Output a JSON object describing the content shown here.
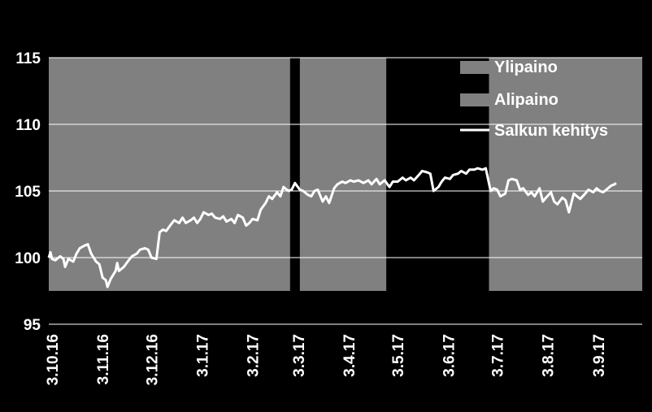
{
  "chart_data": {
    "type": "line",
    "title": "",
    "xlabel": "",
    "ylabel": "",
    "ylim": [
      95,
      115
    ],
    "yticks": [
      95,
      100,
      105,
      110,
      115
    ],
    "grid": true,
    "legend_position": "top-right",
    "x_tick_labels": [
      "3.10.16",
      "3.11.16",
      "3.12.16",
      "3.1.17",
      "3.2.17",
      "3.3.17",
      "3.4.17",
      "3.5.17",
      "3.6.17",
      "3.7.17",
      "3.8.17",
      "3.9.17"
    ],
    "colors": {
      "background": "#000000",
      "band": "#808080",
      "line": "#ffffff",
      "grid": "#ffffff"
    },
    "legend": [
      {
        "label": "Ylipaino",
        "kind": "band"
      },
      {
        "label": "Alipaino",
        "kind": "band"
      },
      {
        "label": "Salkun kehitys",
        "kind": "line"
      }
    ],
    "bands": [
      {
        "from": "2016-10-01",
        "to": "2017-02-26",
        "label": "Ylipaino"
      },
      {
        "from": "2017-03-04",
        "to": "2017-04-26",
        "label": "Ylipaino"
      },
      {
        "from": "2017-06-28",
        "to": "2017-09-30",
        "label": "Ylipaino"
      }
    ],
    "series": [
      {
        "name": "Salkun kehitys",
        "points": [
          [
            "2016-10-01",
            100.0
          ],
          [
            "2016-10-02",
            100.4
          ],
          [
            "2016-10-03",
            99.9
          ],
          [
            "2016-10-05",
            99.8
          ],
          [
            "2016-10-08",
            100.1
          ],
          [
            "2016-10-10",
            99.9
          ],
          [
            "2016-10-11",
            99.3
          ],
          [
            "2016-10-13",
            99.9
          ],
          [
            "2016-10-16",
            99.7
          ],
          [
            "2016-10-18",
            100.3
          ],
          [
            "2016-10-20",
            100.7
          ],
          [
            "2016-10-23",
            100.9
          ],
          [
            "2016-10-25",
            101.0
          ],
          [
            "2016-10-27",
            100.3
          ],
          [
            "2016-10-30",
            99.7
          ],
          [
            "2016-11-01",
            99.5
          ],
          [
            "2016-11-03",
            98.5
          ],
          [
            "2016-11-05",
            98.3
          ],
          [
            "2016-11-06",
            97.8
          ],
          [
            "2016-11-08",
            98.4
          ],
          [
            "2016-11-11",
            99.0
          ],
          [
            "2016-11-12",
            99.6
          ],
          [
            "2016-11-13",
            99.0
          ],
          [
            "2016-11-16",
            99.3
          ],
          [
            "2016-11-19",
            99.8
          ],
          [
            "2016-11-21",
            100.1
          ],
          [
            "2016-11-24",
            100.3
          ],
          [
            "2016-11-26",
            100.6
          ],
          [
            "2016-11-29",
            100.7
          ],
          [
            "2016-12-01",
            100.6
          ],
          [
            "2016-12-03",
            100.0
          ],
          [
            "2016-12-06",
            99.9
          ],
          [
            "2016-12-08",
            101.9
          ],
          [
            "2016-12-10",
            102.1
          ],
          [
            "2016-12-12",
            102.0
          ],
          [
            "2016-12-15",
            102.5
          ],
          [
            "2016-12-17",
            102.8
          ],
          [
            "2016-12-20",
            102.6
          ],
          [
            "2016-12-22",
            103.0
          ],
          [
            "2016-12-24",
            102.6
          ],
          [
            "2016-12-27",
            102.8
          ],
          [
            "2016-12-29",
            103.0
          ],
          [
            "2016-12-31",
            102.6
          ],
          [
            "2017-01-02",
            102.9
          ],
          [
            "2017-01-04",
            103.4
          ],
          [
            "2017-01-07",
            103.2
          ],
          [
            "2017-01-09",
            103.3
          ],
          [
            "2017-01-11",
            103.0
          ],
          [
            "2017-01-14",
            102.9
          ],
          [
            "2017-01-16",
            103.1
          ],
          [
            "2017-01-18",
            102.7
          ],
          [
            "2017-01-21",
            102.9
          ],
          [
            "2017-01-23",
            102.6
          ],
          [
            "2017-01-25",
            103.2
          ],
          [
            "2017-01-28",
            103.0
          ],
          [
            "2017-01-30",
            102.4
          ],
          [
            "2017-02-01",
            102.6
          ],
          [
            "2017-02-03",
            102.9
          ],
          [
            "2017-02-06",
            102.8
          ],
          [
            "2017-02-08",
            103.6
          ],
          [
            "2017-02-11",
            104.1
          ],
          [
            "2017-02-13",
            104.6
          ],
          [
            "2017-02-15",
            104.4
          ],
          [
            "2017-02-18",
            104.9
          ],
          [
            "2017-02-20",
            104.6
          ],
          [
            "2017-02-22",
            105.3
          ],
          [
            "2017-02-25",
            105.0
          ],
          [
            "2017-02-27",
            105.1
          ],
          [
            "2017-03-01",
            105.6
          ],
          [
            "2017-03-04",
            105.1
          ],
          [
            "2017-03-06",
            105.0
          ],
          [
            "2017-03-09",
            104.7
          ],
          [
            "2017-03-11",
            104.6
          ],
          [
            "2017-03-13",
            105.0
          ],
          [
            "2017-03-15",
            105.1
          ],
          [
            "2017-03-18",
            104.2
          ],
          [
            "2017-03-20",
            104.6
          ],
          [
            "2017-03-22",
            104.1
          ],
          [
            "2017-03-25",
            105.2
          ],
          [
            "2017-03-27",
            105.5
          ],
          [
            "2017-03-30",
            105.7
          ],
          [
            "2017-04-01",
            105.6
          ],
          [
            "2017-04-04",
            105.8
          ],
          [
            "2017-04-06",
            105.7
          ],
          [
            "2017-04-09",
            105.8
          ],
          [
            "2017-04-12",
            105.6
          ],
          [
            "2017-04-15",
            105.8
          ],
          [
            "2017-04-17",
            105.5
          ],
          [
            "2017-04-20",
            105.9
          ],
          [
            "2017-04-22",
            105.5
          ],
          [
            "2017-04-25",
            105.8
          ],
          [
            "2017-04-28",
            105.3
          ],
          [
            "2017-04-30",
            105.7
          ],
          [
            "2017-05-03",
            105.7
          ],
          [
            "2017-05-06",
            106.0
          ],
          [
            "2017-05-08",
            105.8
          ],
          [
            "2017-05-11",
            106.0
          ],
          [
            "2017-05-13",
            105.8
          ],
          [
            "2017-05-16",
            106.2
          ],
          [
            "2017-05-18",
            106.5
          ],
          [
            "2017-05-21",
            106.4
          ],
          [
            "2017-05-23",
            106.3
          ],
          [
            "2017-05-25",
            105.0
          ],
          [
            "2017-05-28",
            105.3
          ],
          [
            "2017-05-30",
            105.7
          ],
          [
            "2017-06-01",
            106.0
          ],
          [
            "2017-06-04",
            105.9
          ],
          [
            "2017-06-06",
            106.2
          ],
          [
            "2017-06-09",
            106.3
          ],
          [
            "2017-06-11",
            106.5
          ],
          [
            "2017-06-14",
            106.3
          ],
          [
            "2017-06-16",
            106.6
          ],
          [
            "2017-06-19",
            106.6
          ],
          [
            "2017-06-21",
            106.7
          ],
          [
            "2017-06-24",
            106.6
          ],
          [
            "2017-06-26",
            106.7
          ],
          [
            "2017-06-29",
            105.0
          ],
          [
            "2017-07-01",
            105.2
          ],
          [
            "2017-07-03",
            105.1
          ],
          [
            "2017-07-05",
            104.6
          ],
          [
            "2017-07-08",
            104.8
          ],
          [
            "2017-07-10",
            105.8
          ],
          [
            "2017-07-12",
            105.9
          ],
          [
            "2017-07-15",
            105.8
          ],
          [
            "2017-07-17",
            105.1
          ],
          [
            "2017-07-19",
            105.2
          ],
          [
            "2017-07-22",
            104.7
          ],
          [
            "2017-07-24",
            104.9
          ],
          [
            "2017-07-26",
            104.6
          ],
          [
            "2017-07-29",
            105.2
          ],
          [
            "2017-07-31",
            104.2
          ],
          [
            "2017-08-02",
            104.5
          ],
          [
            "2017-08-05",
            104.9
          ],
          [
            "2017-08-07",
            104.2
          ],
          [
            "2017-08-09",
            104.0
          ],
          [
            "2017-08-12",
            104.5
          ],
          [
            "2017-08-14",
            104.3
          ],
          [
            "2017-08-16",
            103.4
          ],
          [
            "2017-08-19",
            104.8
          ],
          [
            "2017-08-21",
            104.6
          ],
          [
            "2017-08-23",
            104.4
          ],
          [
            "2017-08-26",
            104.8
          ],
          [
            "2017-08-28",
            105.1
          ],
          [
            "2017-08-31",
            104.9
          ],
          [
            "2017-09-02",
            105.2
          ],
          [
            "2017-09-04",
            105.0
          ],
          [
            "2017-09-06",
            104.9
          ],
          [
            "2017-09-09",
            105.2
          ],
          [
            "2017-09-11",
            105.4
          ],
          [
            "2017-09-13",
            105.5
          ],
          [
            "2017-09-14",
            105.6
          ]
        ]
      }
    ]
  }
}
